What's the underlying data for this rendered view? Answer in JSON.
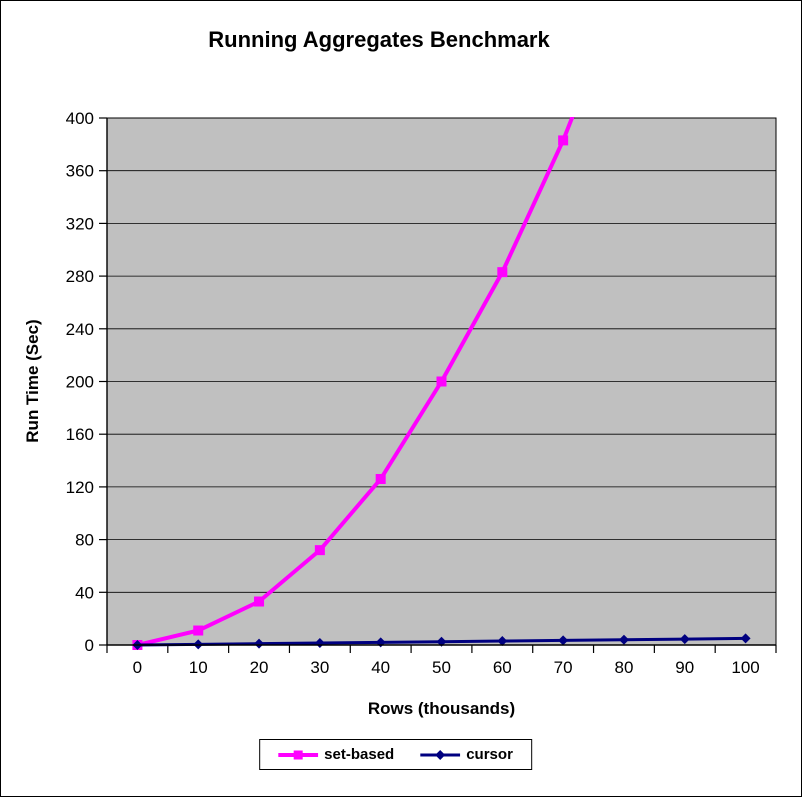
{
  "chart_data": {
    "type": "line",
    "title": "Running Aggregates Benchmark",
    "xlabel": "Rows (thousands)",
    "ylabel": "Run Time (Sec)",
    "categories": [
      0,
      10,
      20,
      30,
      40,
      50,
      60,
      70,
      80,
      90,
      100
    ],
    "ylim": [
      0,
      400
    ],
    "ytick_step": 40,
    "grid": true,
    "gridline_color": "#000000",
    "plot_bg": "#C0C0C0",
    "axis_color": "#000000",
    "legend_position": "bottom",
    "series": [
      {
        "name": "set-based",
        "color": "#FF00FF",
        "marker": "square",
        "values": [
          0,
          11,
          33,
          72,
          126,
          200,
          283,
          383,
          null,
          null,
          null
        ],
        "offscale_note": "line continues above y-axis max (400) after x=70 and is clipped at plot top",
        "clipped_continuation": {
          "next_value_estimate": 500
        }
      },
      {
        "name": "cursor",
        "color": "#000080",
        "marker": "diamond",
        "values": [
          0,
          0.5,
          1,
          1.5,
          2,
          2.5,
          3,
          3.5,
          4,
          4.5,
          5
        ]
      }
    ]
  }
}
